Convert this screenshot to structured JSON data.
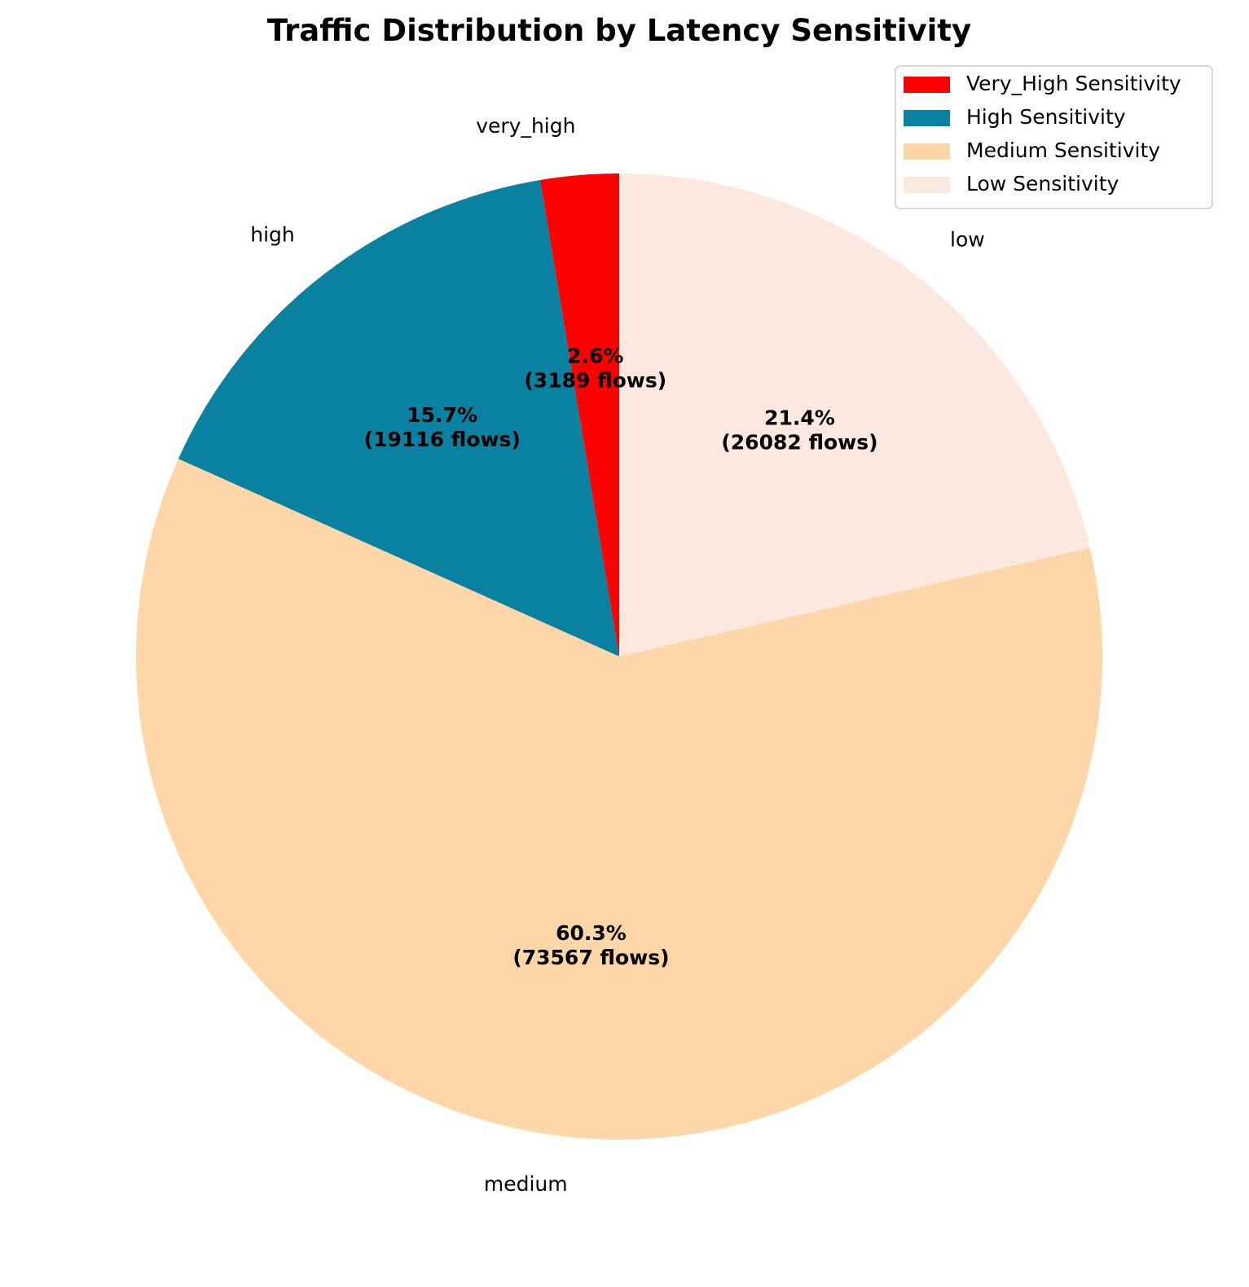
{
  "chart_data": {
    "type": "pie",
    "title": "Traffic Distribution by Latency Sensitivity",
    "start_angle_deg": 90,
    "direction": "counterclockwise",
    "slices": [
      {
        "label": "very_high",
        "legend": "Very_High Sensitivity",
        "value": 3189,
        "pct_text": "2.6%",
        "count_text": "(3189 flows)",
        "color": "#ff0000"
      },
      {
        "label": "high",
        "legend": "High Sensitivity",
        "value": 19116,
        "pct_text": "15.7%",
        "count_text": "(19116 flows)",
        "color": "#0a81a1"
      },
      {
        "label": "medium",
        "legend": "Medium Sensitivity",
        "value": 73567,
        "pct_text": "60.3%",
        "count_text": "(73567 flows)",
        "color": "#fed6a7"
      },
      {
        "label": "low",
        "legend": "Low Sensitivity",
        "value": 26082,
        "pct_text": "21.4%",
        "count_text": "(26082 flows)",
        "color": "#fde8df"
      }
    ],
    "legend_position": "upper right"
  }
}
